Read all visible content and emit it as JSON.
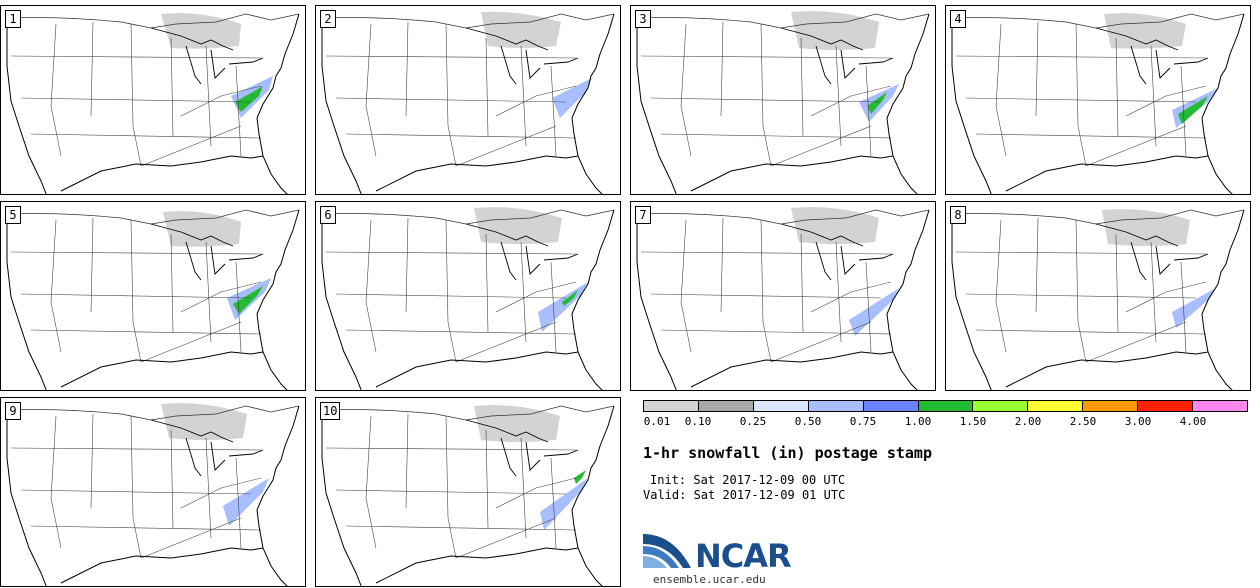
{
  "panels": [
    {
      "label": "1"
    },
    {
      "label": "2"
    },
    {
      "label": "3"
    },
    {
      "label": "4"
    },
    {
      "label": "5"
    },
    {
      "label": "6"
    },
    {
      "label": "7"
    },
    {
      "label": "8"
    },
    {
      "label": "9"
    },
    {
      "label": "10"
    }
  ],
  "legend": {
    "colors": [
      "#d3d3d3",
      "#a8a8a8",
      "#dde6ff",
      "#a8beff",
      "#6a84ff",
      "#22bb33",
      "#99ff33",
      "#ffff33",
      "#ff9900",
      "#ff2200",
      "#ff88ee"
    ],
    "tick_labels": [
      "0.01",
      "0.10",
      "0.25",
      "0.50",
      "0.75",
      "1.00",
      "1.50",
      "2.00",
      "2.50",
      "3.00",
      "4.00"
    ]
  },
  "title": "1-hr snowfall (in) postage stamp",
  "init": "Init: Sat 2017-12-09 00 UTC",
  "valid": "Valid: Sat 2017-12-09 01 UTC",
  "logo": {
    "text": "NCAR",
    "site": "ensemble.ucar.edu"
  }
}
